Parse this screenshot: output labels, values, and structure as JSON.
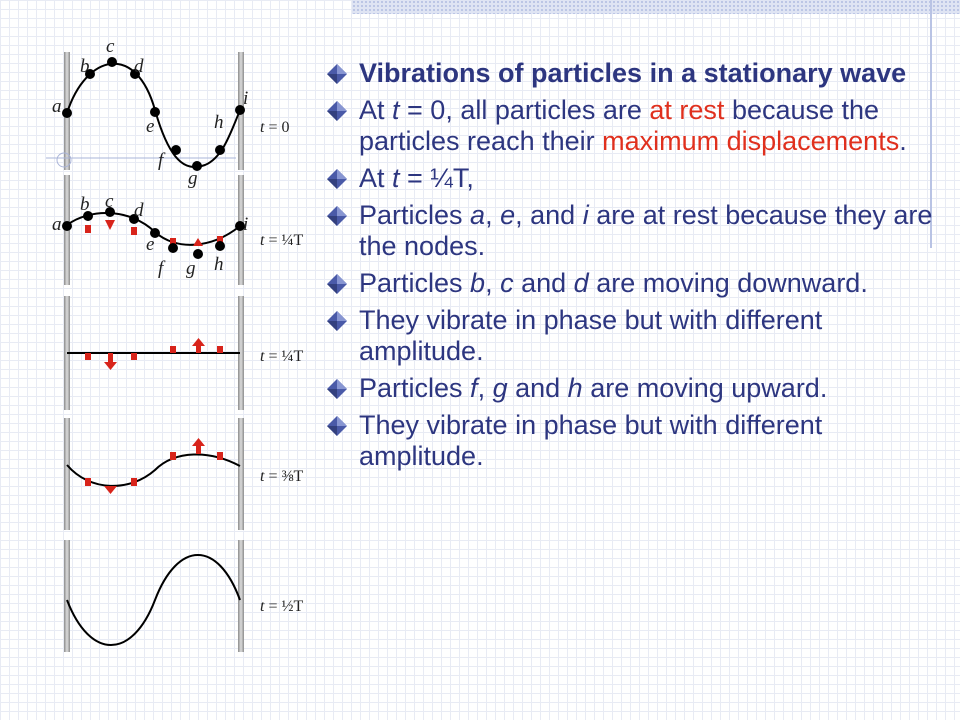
{
  "diagram": {
    "particle_labels": [
      "a",
      "b",
      "c",
      "d",
      "e",
      "f",
      "g",
      "h",
      "i"
    ],
    "time_labels": [
      {
        "t": "t",
        "eq": " = 0"
      },
      {
        "t": "t",
        "eq": " = ¼T"
      },
      {
        "t": "t",
        "eq": " = ¼T"
      },
      {
        "t": "t",
        "eq": " = ⅜T"
      },
      {
        "t": "t",
        "eq": " = ½T"
      }
    ],
    "colors": {
      "particle": "#000000",
      "arrow": "#d8241b",
      "wall": "#b4b4b4"
    }
  },
  "bullets": {
    "b0": "Vibrations of particles in a stationary wave",
    "b1": {
      "pre": "At ",
      "t": "t",
      "mid": " = 0, all particles are ",
      "r1": "at rest",
      "mid2": " because the particles reach their ",
      "r2": "maximum displacements",
      "end": "."
    },
    "b2": {
      "pre": "At ",
      "t": "t",
      "end": " = ¼T,"
    },
    "b3": {
      "pre": "Particles ",
      "a": "a",
      "s1": ", ",
      "e": "e",
      "s2": ", and ",
      "i": "i",
      "end": " are at rest because they are the nodes."
    },
    "b4": {
      "pre": "Particles ",
      "b": "b",
      "s1": ", ",
      "c": "c",
      "s2": " and ",
      "d": "d",
      "end": " are moving downward."
    },
    "b5": "They vibrate in phase but with different amplitude.",
    "b6": {
      "pre": "Particles ",
      "f": "f",
      "s1": ", ",
      "g": "g",
      "s2": " and ",
      "h": "h",
      "end": " are moving upward."
    },
    "b7": "They vibrate in phase but with different amplitude."
  }
}
